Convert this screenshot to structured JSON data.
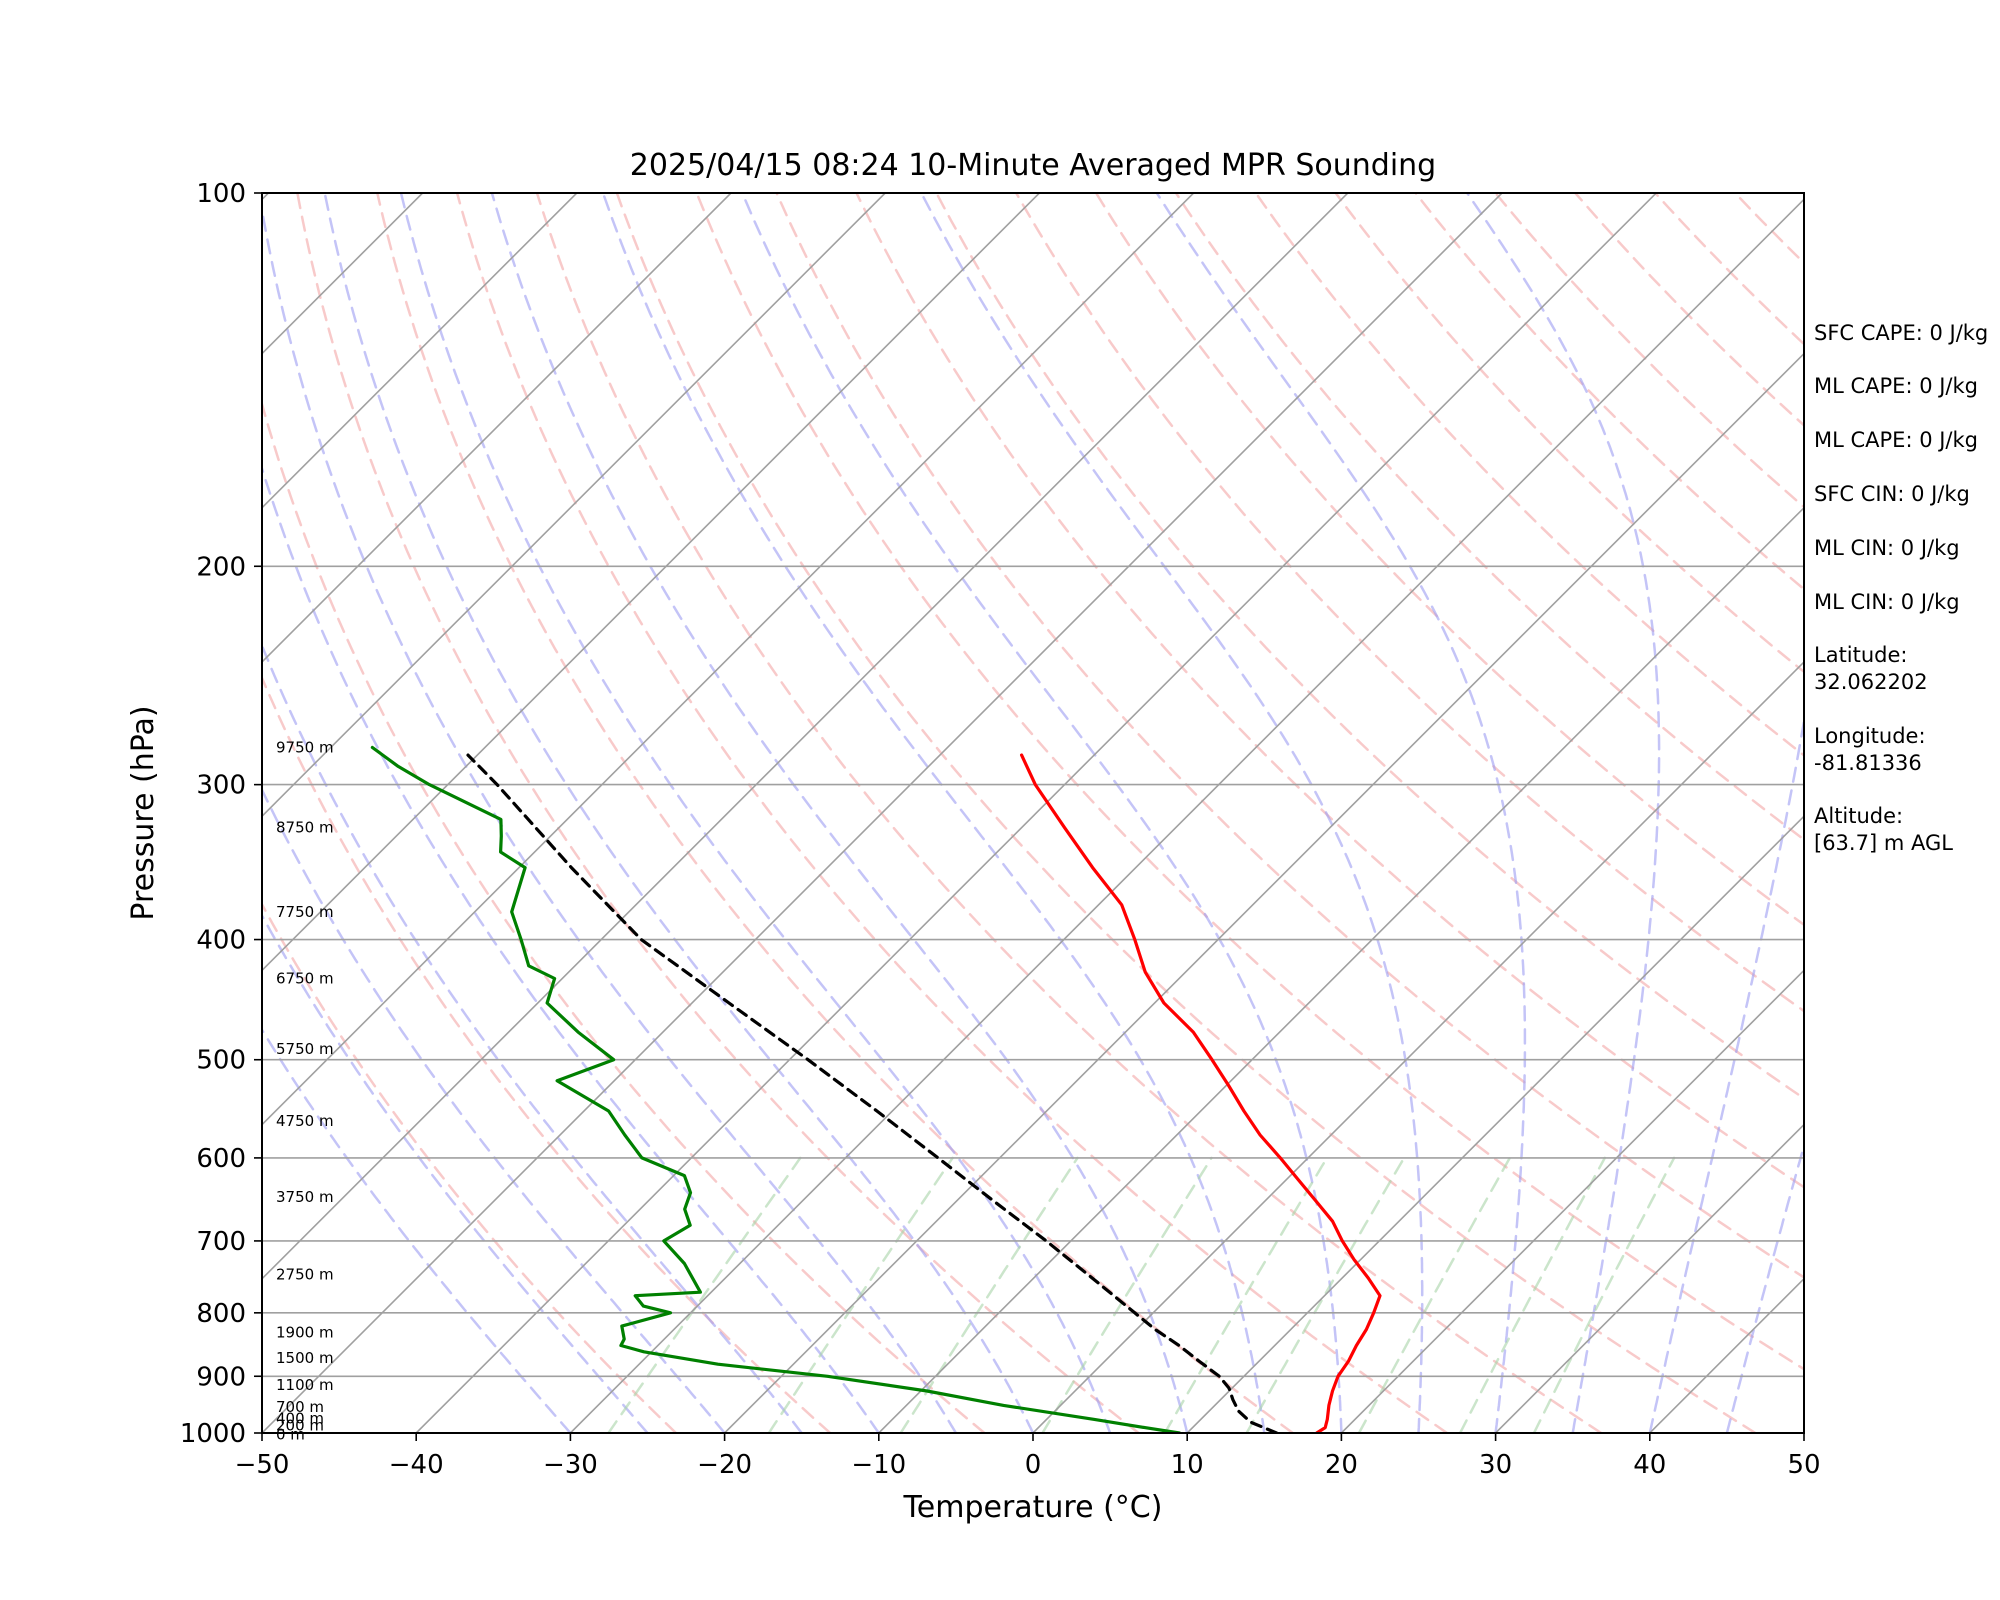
{
  "chart_data": {
    "type": "line",
    "title": "2025/04/15 08:24 10-Minute Averaged MPR Sounding",
    "xlabel": "Temperature (°C)",
    "ylabel": "Pressure (hPa)",
    "x_ticks": [
      "−50",
      "−40",
      "−30",
      "−20",
      "−10",
      "0",
      "10",
      "20",
      "30",
      "40",
      "50"
    ],
    "xlim": [
      -50,
      50
    ],
    "y_ticks": [
      "100",
      "200",
      "300",
      "400",
      "500",
      "600",
      "700",
      "800",
      "900",
      "1000"
    ],
    "ylim": [
      1000,
      100
    ],
    "y_scale": "log",
    "grid": true,
    "skew": "skew-T log-P",
    "colors": {
      "temperature": "#ff0000",
      "dewpoint": "#008000",
      "parcel": "#000000",
      "dry_adiabats": "#f4a6a6",
      "moist_adiabats": "#9d9df2",
      "mixing_ratio": "#a8d4a8",
      "isotherms": "#a0a0a0",
      "isobars": "#a0a0a0"
    },
    "series": [
      {
        "key": "temperature",
        "style": "solid",
        "p": [
          1000,
          990,
          975,
          950,
          925,
          900,
          875,
          850,
          825,
          800,
          775,
          750,
          725,
          700,
          675,
          650,
          625,
          600,
          575,
          550,
          525,
          500,
          475,
          450,
          425,
          400,
          375,
          350,
          325,
          300,
          284
        ],
        "t": [
          18.4,
          18.6,
          18.2,
          17.4,
          16.7,
          16.1,
          15.8,
          15.3,
          14.9,
          14.3,
          13.6,
          11.7,
          9.6,
          7.6,
          5.7,
          3.3,
          0.8,
          -1.8,
          -4.6,
          -7.2,
          -9.8,
          -12.6,
          -15.6,
          -19.4,
          -22.6,
          -25.4,
          -28.5,
          -32.8,
          -37.2,
          -41.9,
          -44.7
        ]
      },
      {
        "key": "dewpoint",
        "style": "solid",
        "p": [
          1000,
          990,
          975,
          950,
          925,
          900,
          880,
          860,
          850,
          840,
          820,
          800,
          790,
          775,
          770,
          730,
          700,
          680,
          660,
          640,
          620,
          600,
          575,
          550,
          520,
          500,
          475,
          450,
          430,
          420,
          400,
          380,
          350,
          340,
          330,
          320,
          300,
          290,
          280
        ],
        "t": [
          9.5,
          6.9,
          3.1,
          -3.7,
          -9.6,
          -17.0,
          -24.9,
          -30.5,
          -32.4,
          -32.6,
          -33.6,
          -31.3,
          -33.5,
          -34.7,
          -30.7,
          -33.6,
          -36.4,
          -35.7,
          -37.1,
          -37.8,
          -39.3,
          -43.2,
          -45.8,
          -48.4,
          -53.7,
          -51.4,
          -55.5,
          -59.4,
          -60.5,
          -63.0,
          -65.2,
          -67.6,
          -69.6,
          -72.2,
          -73.2,
          -74.3,
          -81.2,
          -84.4,
          -87.3
        ]
      },
      {
        "key": "parcel",
        "style": "dashed",
        "p": [
          1000,
          980,
          960,
          940,
          920,
          900,
          875,
          850,
          825,
          800,
          750,
          700,
          650,
          600,
          550,
          500,
          450,
          400,
          350,
          300,
          284
        ],
        "t": [
          15.8,
          13.4,
          11.9,
          10.8,
          9.8,
          8.4,
          6.1,
          3.8,
          1.2,
          -1.2,
          -6.2,
          -11.6,
          -17.6,
          -24.0,
          -31.0,
          -38.8,
          -47.6,
          -57.4,
          -66.6,
          -76.8,
          -80.6
        ]
      }
    ],
    "height_labels": [
      "0 m",
      "200 m",
      "400 m",
      "700 m",
      "1100 m",
      "1500 m",
      "1900 m",
      "2750 m",
      "3750 m",
      "4750 m",
      "5750 m",
      "6750 m",
      "7750 m",
      "8750 m",
      "9750 m"
    ],
    "height_label_pressures": [
      1003,
      986,
      973,
      953,
      915,
      870,
      830,
      745,
      645,
      560,
      490,
      430,
      380,
      325,
      280
    ],
    "info_lines": [
      "SFC CAPE: 0 J/kg",
      "ML CAPE: 0 J/kg",
      "ML CAPE: 0 J/kg",
      "SFC CIN: 0 J/kg",
      "ML CIN: 0 J/kg",
      "ML CIN: 0 J/kg",
      "Latitude:",
      "32.062202",
      "Longitude:",
      "-81.81336",
      "Altitude:",
      "[63.7] m AGL"
    ]
  }
}
